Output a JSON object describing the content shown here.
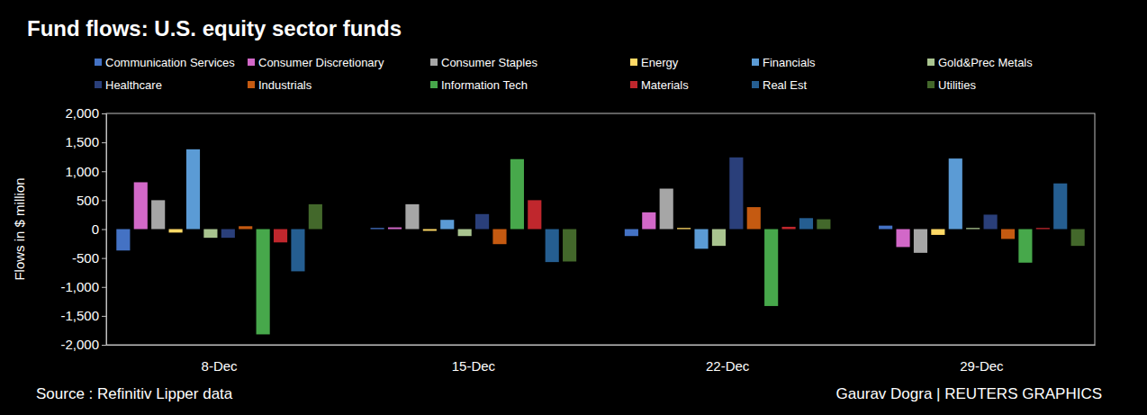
{
  "chart_data": {
    "type": "bar",
    "title": "Fund flows: U.S. equity sector funds",
    "y_label": "Flows in $ million",
    "annotations": [
      "Source : Refinitiv Lipper data",
      "Gaurav Dogra | REUTERS GRAPHICS"
    ],
    "categories": [
      "8-Dec",
      "15-Dec",
      "22-Dec",
      "29-Dec"
    ],
    "series": [
      {
        "name": "Communication Services",
        "color": "#4472c4",
        "values": [
          -370,
          20,
          -120,
          60
        ]
      },
      {
        "name": "Consumer Discretionary",
        "color": "#d268c8",
        "values": [
          810,
          30,
          290,
          -310
        ]
      },
      {
        "name": "Consumer Staples",
        "color": "#a6a6a6",
        "values": [
          500,
          430,
          700,
          -410
        ]
      },
      {
        "name": "Energy",
        "color": "#ffd966",
        "values": [
          -60,
          -30,
          20,
          -100
        ]
      },
      {
        "name": "Financials",
        "color": "#5b9bd5",
        "values": [
          1380,
          160,
          -340,
          1220
        ]
      },
      {
        "name": "Gold&Prec Metals",
        "color": "#a9c48f",
        "values": [
          -150,
          -120,
          -290,
          20
        ]
      },
      {
        "name": "Healthcare",
        "color": "#2a3f7a",
        "values": [
          -150,
          260,
          1240,
          250
        ]
      },
      {
        "name": "Industrials",
        "color": "#c55a11",
        "values": [
          50,
          -260,
          380,
          -170
        ]
      },
      {
        "name": "Information Tech",
        "color": "#47a84b",
        "values": [
          -1820,
          1210,
          -1330,
          -580
        ]
      },
      {
        "name": "Materials",
        "color": "#c0272d",
        "values": [
          -230,
          500,
          40,
          20
        ]
      },
      {
        "name": "Real Est",
        "color": "#255e91",
        "values": [
          -730,
          -570,
          190,
          790
        ]
      },
      {
        "name": "Utilities",
        "color": "#43682b",
        "values": [
          430,
          -560,
          170,
          -290
        ]
      }
    ],
    "ylim": [
      -2000,
      2000
    ],
    "yticks": [
      {
        "value": -2000,
        "label": "-2,000"
      },
      {
        "value": -1500,
        "label": "-1,500"
      },
      {
        "value": -1000,
        "label": "-1,000"
      },
      -500,
      0,
      500,
      {
        "value": 1000,
        "label": "1,000"
      },
      {
        "value": 1500,
        "label": "1,500"
      },
      {
        "value": 2000,
        "label": "2,000"
      }
    ],
    "grid": false,
    "legend": "top"
  }
}
